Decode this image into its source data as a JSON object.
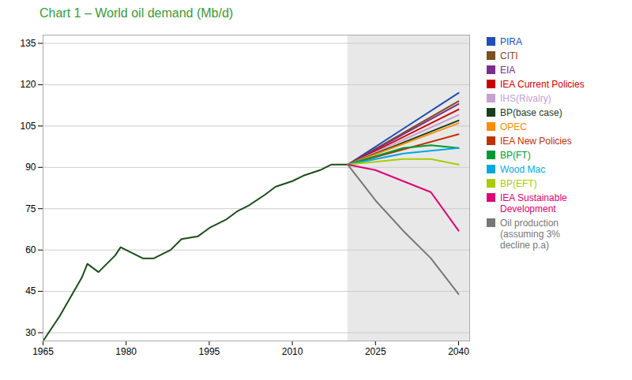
{
  "chart_data": {
    "type": "line",
    "title": "Chart 1 – World oil demand (Mb/d)",
    "title_color": "#3a9a3a",
    "forecast": {
      "from": 2020,
      "color": "#e8e8e8"
    },
    "xlim": [
      1965,
      2042
    ],
    "ylim": [
      27,
      138
    ],
    "xticks": [
      1965,
      1980,
      1995,
      2010,
      2025,
      2040
    ],
    "yticks": [
      30,
      45,
      60,
      75,
      90,
      105,
      120,
      135
    ],
    "grid": true,
    "legend": "right",
    "series": [
      {
        "color": "#1a4d1a",
        "x": [
          1965,
          1968,
          1970,
          1972,
          1973,
          1975,
          1978,
          1979,
          1980,
          1983,
          1985,
          1988,
          1990,
          1993,
          1995,
          1998,
          2000,
          2002,
          2005,
          2007,
          2010,
          2012,
          2015,
          2017,
          2020
        ],
        "values": [
          27,
          36,
          43,
          50,
          55,
          52,
          58,
          61,
          60,
          57,
          57,
          60,
          64,
          65,
          68,
          71,
          74,
          76,
          80,
          83,
          85,
          87,
          89,
          91,
          91
        ]
      },
      {
        "name": "PIRA",
        "color": "#1e4db7",
        "x": [
          2020,
          2040
        ],
        "values": [
          91,
          117
        ]
      },
      {
        "name": "CITI",
        "color": "#7b4f1e",
        "x": [
          2020,
          2040
        ],
        "values": [
          91,
          114
        ]
      },
      {
        "name": "EIA",
        "color": "#7b2d8b",
        "x": [
          2020,
          2040
        ],
        "values": [
          91,
          113
        ]
      },
      {
        "name": "IEA Current Policies",
        "color": "#cc0000",
        "x": [
          2020,
          2040
        ],
        "values": [
          91,
          111
        ]
      },
      {
        "name": "IHS(Rivalry)",
        "color": "#c8a0d0",
        "x": [
          2020,
          2040
        ],
        "values": [
          91,
          109
        ]
      },
      {
        "name": "BP(base case)",
        "color": "#1a3d1a",
        "x": [
          2020,
          2040
        ],
        "values": [
          91,
          107
        ]
      },
      {
        "name": "OPEC",
        "color": "#ff8c00",
        "x": [
          2020,
          2040
        ],
        "values": [
          91,
          106
        ]
      },
      {
        "name": "IEA New Policies",
        "color": "#c03000",
        "x": [
          2020,
          2040
        ],
        "values": [
          91,
          102
        ]
      },
      {
        "name": "BP(FT)",
        "color": "#009933",
        "x": [
          2020,
          2030,
          2035,
          2040
        ],
        "values": [
          91,
          97,
          98,
          97
        ]
      },
      {
        "name": "Wood Mac",
        "color": "#00aadd",
        "x": [
          2020,
          2030,
          2040
        ],
        "values": [
          91,
          95,
          97
        ]
      },
      {
        "name": "BP(EFT)",
        "color": "#aacc00",
        "x": [
          2020,
          2030,
          2035,
          2040
        ],
        "values": [
          91,
          93,
          93,
          91
        ]
      },
      {
        "name": "IEA Sustainable\nDevelopment",
        "color": "#dd0077",
        "x": [
          2020,
          2025,
          2030,
          2035,
          2040
        ],
        "values": [
          91,
          89,
          85,
          81,
          67
        ]
      },
      {
        "name": "Oil production\n(assuming 3%\ndecline p.a)",
        "color": "#777777",
        "x": [
          2020,
          2025,
          2030,
          2035,
          2040
        ],
        "values": [
          91,
          78,
          67,
          57,
          44
        ]
      }
    ]
  }
}
